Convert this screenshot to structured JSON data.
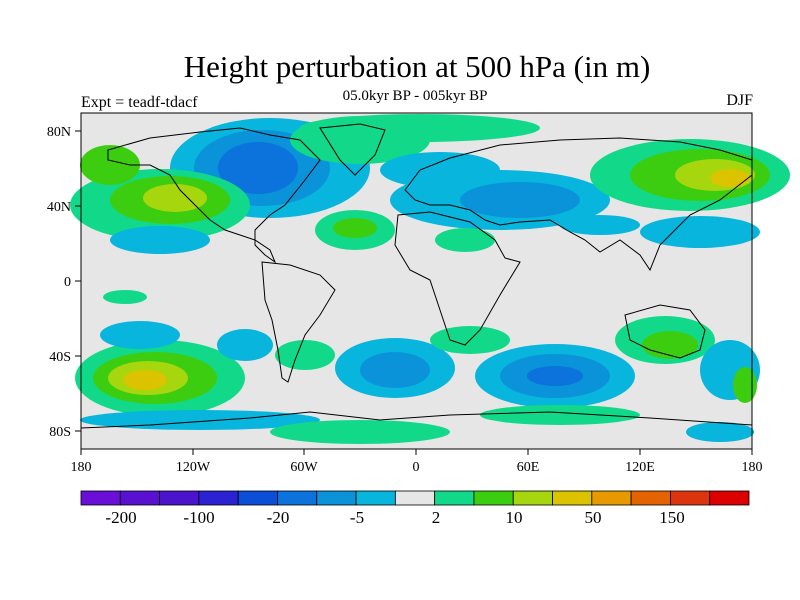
{
  "title": "Height perturbation at 500 hPa (in m)",
  "subtitle": "05.0kyr BP - 005kyr BP",
  "left_string": "Expt = teadf-tdacf",
  "right_string": "DJF",
  "colors": {
    "background": "#e6e6e6",
    "palette": [
      "#6a0fd8",
      "#5a10d0",
      "#4b14cc",
      "#2b22d4",
      "#0b4ed8",
      "#0c72dc",
      "#0a93d8",
      "#07b5dd",
      "#e6e6e6",
      "#12d98a",
      "#3ccd10",
      "#a6d60e",
      "#dcc300",
      "#e69a00",
      "#e26300",
      "#dd3410",
      "#dd0000"
    ]
  },
  "map": {
    "projection": "cylindrical-equidistant",
    "lat_ticks": [
      "80N",
      "40N",
      "0",
      "40S",
      "80S"
    ],
    "lon_ticks": [
      "180",
      "120W",
      "60W",
      "0",
      "60E",
      "120E",
      "180"
    ]
  },
  "colorbar": {
    "labels": [
      "-200",
      "-100",
      "-20",
      "-5",
      "2",
      "10",
      "50",
      "150"
    ],
    "n_boxes": 17
  },
  "field_features": [
    {
      "name": "north-america-low",
      "lon": -95,
      "lat": 65,
      "value": -50
    },
    {
      "name": "north-pacific-high",
      "lon": -150,
      "lat": 45,
      "value": 30
    },
    {
      "name": "siberia-high",
      "lon": 165,
      "lat": 55,
      "value": 60
    },
    {
      "name": "south-pacific-high",
      "lon": -135,
      "lat": -55,
      "value": 60
    },
    {
      "name": "south-indian-low",
      "lon": 75,
      "lat": -50,
      "value": -30
    },
    {
      "name": "south-atlantic-low",
      "lon": -20,
      "lat": -50,
      "value": -25
    },
    {
      "name": "europe-low",
      "lon": 30,
      "lat": 45,
      "value": -10
    }
  ]
}
